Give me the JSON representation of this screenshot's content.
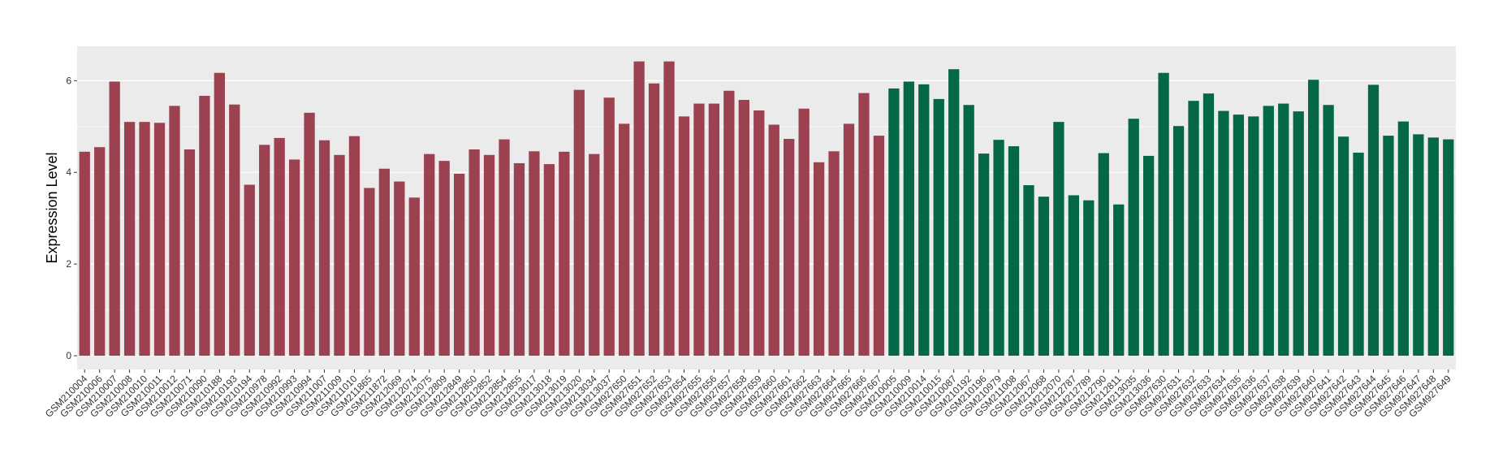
{
  "chart_data": {
    "type": "bar",
    "title": "",
    "xlabel": "",
    "ylabel": "Expression Level",
    "ylim": [
      -0.3,
      6.75
    ],
    "yticks": [
      0,
      2,
      4,
      6
    ],
    "grid": true,
    "legend": "none",
    "colors": {
      "group1": "#9b4150",
      "group2": "#046846",
      "panel": "#ebebeb",
      "grid": "#ffffff"
    },
    "series": [
      {
        "color_key": "group1",
        "categories": [
          "GSM210004",
          "GSM210006",
          "GSM210007",
          "GSM210008",
          "GSM210010",
          "GSM210011",
          "GSM210012",
          "GSM210071",
          "GSM210090",
          "GSM210188",
          "GSM210193",
          "GSM210194",
          "GSM210978",
          "GSM210992",
          "GSM210993",
          "GSM210994",
          "GSM211007",
          "GSM211009",
          "GSM211010",
          "GSM211865",
          "GSM211872",
          "GSM212069",
          "GSM212074",
          "GSM212075",
          "GSM212809",
          "GSM212849",
          "GSM212850",
          "GSM212852",
          "GSM212854",
          "GSM212855",
          "GSM213017",
          "GSM213018",
          "GSM213019",
          "GSM213020",
          "GSM213034",
          "GSM213037",
          "GSM927650",
          "GSM927651",
          "GSM927652",
          "GSM927653",
          "GSM927654",
          "GSM927655",
          "GSM927656",
          "GSM927657",
          "GSM927658",
          "GSM927659",
          "GSM927660",
          "GSM927661",
          "GSM927662",
          "GSM927663",
          "GSM927664",
          "GSM927665",
          "GSM927666",
          "GSM927667"
        ],
        "values": [
          4.45,
          4.55,
          5.98,
          5.1,
          5.1,
          5.08,
          5.45,
          4.5,
          5.67,
          6.17,
          5.48,
          3.73,
          4.6,
          4.75,
          4.28,
          5.3,
          4.7,
          4.38,
          4.79,
          3.66,
          4.08,
          3.8,
          3.45,
          4.4,
          4.25,
          3.97,
          4.5,
          4.38,
          4.72,
          4.2,
          4.46,
          4.18,
          4.45,
          5.8,
          4.4,
          5.63,
          5.06,
          6.42,
          5.94,
          6.42,
          5.22,
          5.5,
          5.5,
          5.78,
          5.58,
          5.35,
          5.04,
          4.73,
          5.39,
          4.22,
          4.46,
          5.06,
          5.73,
          4.8
        ]
      },
      {
        "color_key": "group2",
        "categories": [
          "GSM210005",
          "GSM210009",
          "GSM210014",
          "GSM210015",
          "GSM210087",
          "GSM210192",
          "GSM210196",
          "GSM210979",
          "GSM211008",
          "GSM212067",
          "GSM212068",
          "GSM212070",
          "GSM212787",
          "GSM212789",
          "GSM212790",
          "GSM212811",
          "GSM213035",
          "GSM213036",
          "GSM927630",
          "GSM927631",
          "GSM927632",
          "GSM927633",
          "GSM927634",
          "GSM927635",
          "GSM927636",
          "GSM927637",
          "GSM927638",
          "GSM927639",
          "GSM927640",
          "GSM927641",
          "GSM927642",
          "GSM927643",
          "GSM927644",
          "GSM927645",
          "GSM927646",
          "GSM927647",
          "GSM927648",
          "GSM927649"
        ],
        "values": [
          5.83,
          5.98,
          5.92,
          5.6,
          6.25,
          5.47,
          4.41,
          4.71,
          4.57,
          3.72,
          3.47,
          5.1,
          3.5,
          3.39,
          4.42,
          3.3,
          5.17,
          4.36,
          6.17,
          5.01,
          5.56,
          5.72,
          5.34,
          5.26,
          5.22,
          5.45,
          5.5,
          5.33,
          6.02,
          5.47,
          4.78,
          4.43,
          5.91,
          4.8,
          5.11,
          4.83,
          4.76,
          4.72
        ]
      }
    ]
  }
}
